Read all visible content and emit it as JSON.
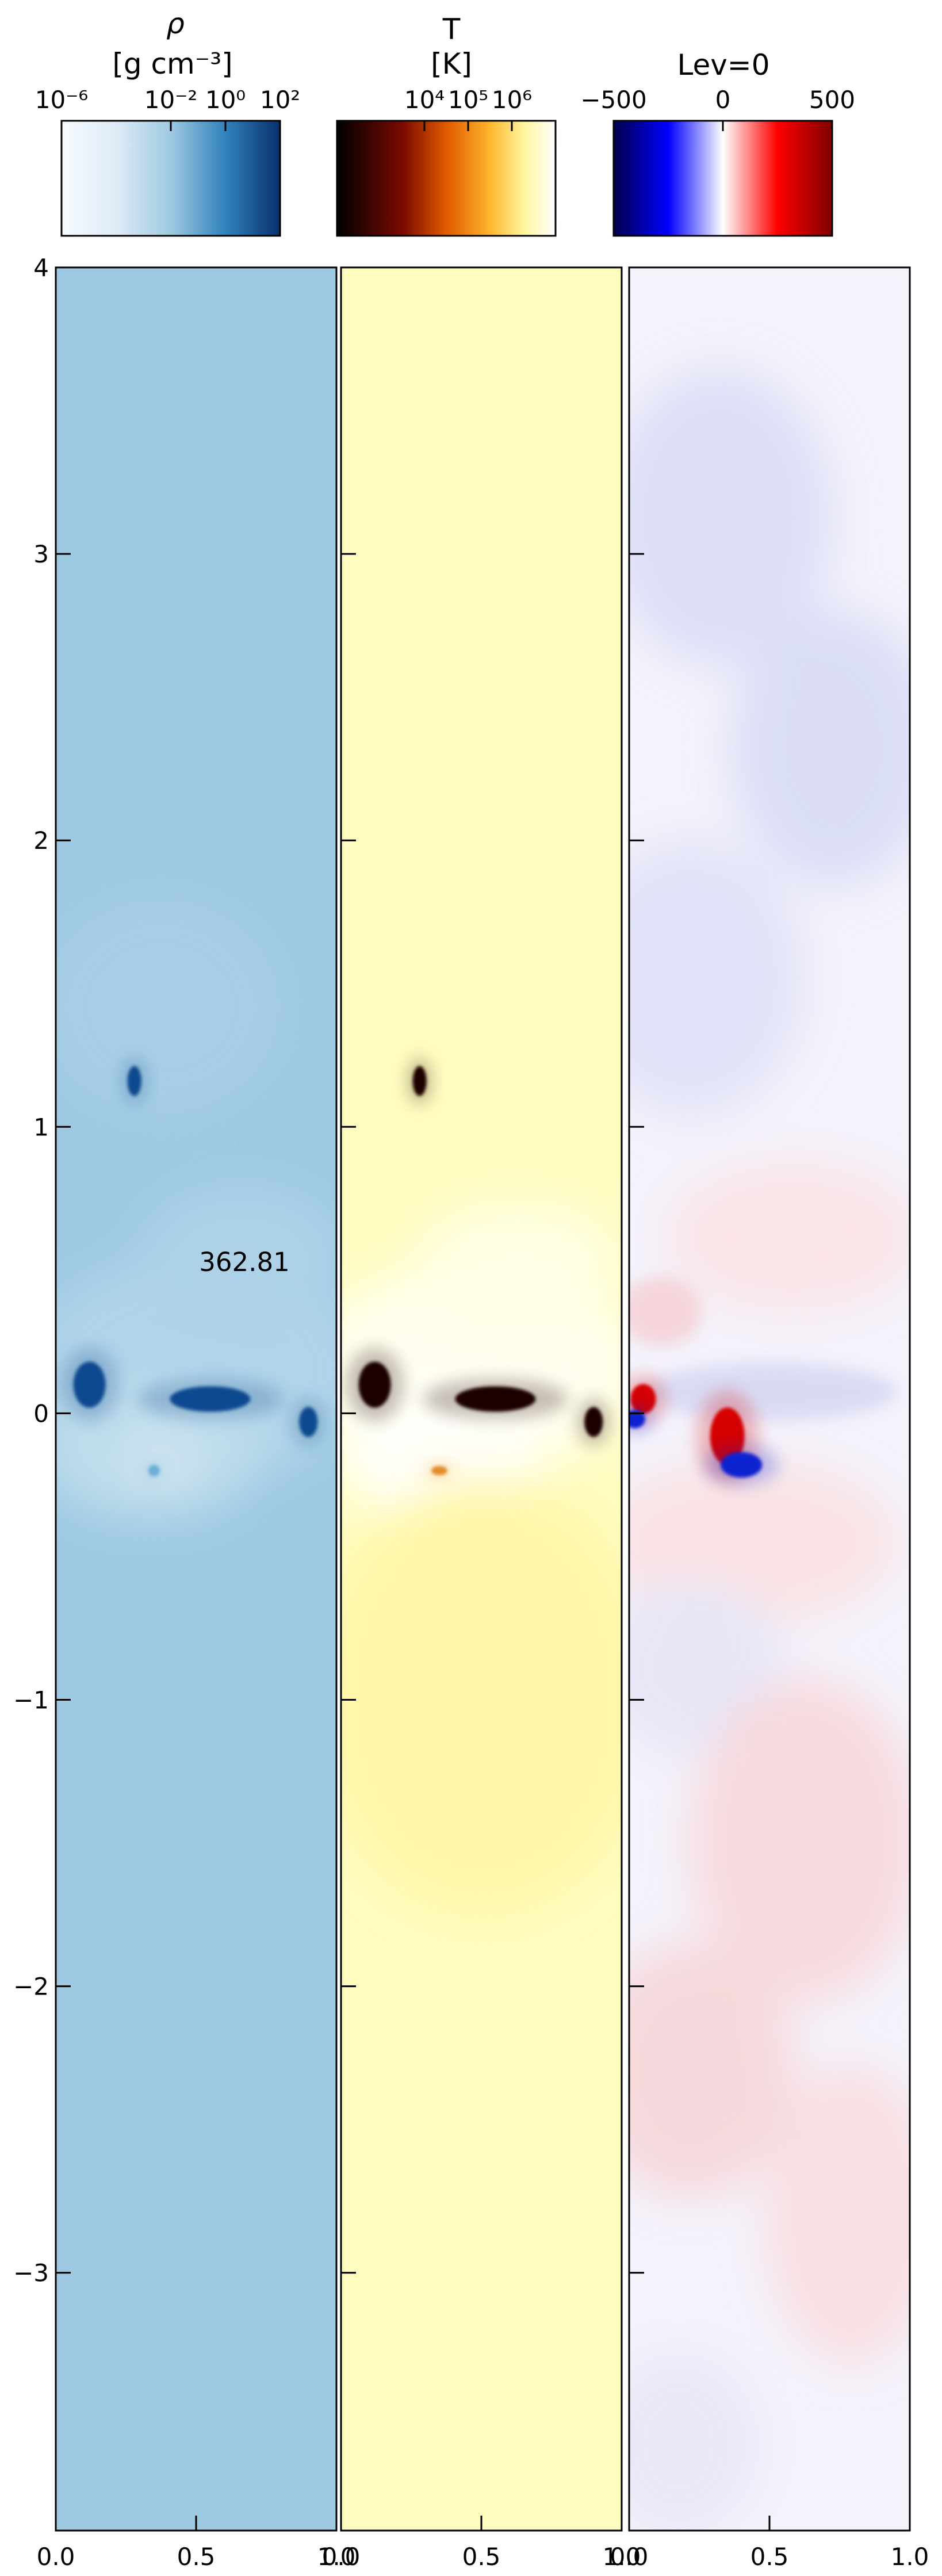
{
  "time_label": "362.81",
  "chart_data": [
    {
      "type": "heatmap",
      "panel": "density",
      "colorbar": {
        "title_line1": "ρ",
        "title_line2": "[g cm⁻³]",
        "colormap": "Blues",
        "scale": "log",
        "range": [
          1e-06,
          100
        ],
        "tick_labels": [
          "10⁻⁶",
          "10⁻²",
          "10⁰",
          "10²"
        ],
        "tick_values": [
          1e-06,
          0.01,
          1,
          100
        ]
      },
      "background_color": "#9dc9e2",
      "clumps": [
        {
          "x": 0.12,
          "y": 0.1,
          "value": "high"
        },
        {
          "x": 0.28,
          "y": 1.16,
          "value": "high"
        },
        {
          "x": 0.55,
          "y": 0.05,
          "value": "high"
        },
        {
          "x": 0.9,
          "y": -0.03,
          "value": "high"
        },
        {
          "x": 0.35,
          "y": -0.2,
          "value": "medium"
        }
      ],
      "xlim": [
        0,
        1
      ],
      "ylim": [
        -3.9,
        4
      ],
      "x_tick_labels": [
        "0.0",
        "0.5",
        "1.0"
      ],
      "x_tick_values": [
        0,
        0.5,
        1
      ],
      "y_tick_labels": [
        "4",
        "3",
        "2",
        "1",
        "0",
        "−1",
        "−2",
        "−3"
      ],
      "y_tick_values": [
        4,
        3,
        2,
        1,
        0,
        -1,
        -2,
        -3
      ]
    },
    {
      "type": "heatmap",
      "panel": "temperature",
      "colorbar": {
        "title_line1": "T",
        "title_line2": "[K]",
        "colormap": "afmhot",
        "scale": "log",
        "range": [
          100,
          10000000.0
        ],
        "tick_labels": [
          "10⁴",
          "10⁵",
          "10⁶"
        ],
        "tick_values": [
          10000,
          100000,
          1000000
        ]
      },
      "background_color": "#fffcc0",
      "clumps": [
        {
          "x": 0.12,
          "y": 0.1,
          "value": "low"
        },
        {
          "x": 0.28,
          "y": 1.16,
          "value": "low"
        },
        {
          "x": 0.55,
          "y": 0.05,
          "value": "low"
        },
        {
          "x": 0.9,
          "y": -0.03,
          "value": "low"
        },
        {
          "x": 0.35,
          "y": -0.2,
          "value": "medium"
        }
      ],
      "xlim": [
        0,
        1
      ],
      "ylim": [
        -3.9,
        4
      ],
      "x_tick_labels": [
        "0.0",
        "0.5",
        "1.0"
      ],
      "x_tick_values": [
        0,
        0.5,
        1
      ]
    },
    {
      "type": "heatmap",
      "panel": "velocity",
      "colorbar": {
        "title_line1": "Lev=0",
        "colormap": "seismic",
        "scale": "linear",
        "range": [
          -500,
          500
        ],
        "tick_labels": [
          "−500",
          "0",
          "500"
        ],
        "tick_values": [
          -500,
          0,
          500
        ]
      },
      "background_color": "#f4f2fb",
      "features": [
        {
          "x": 0.05,
          "y": 0.05,
          "sign": "positive"
        },
        {
          "x": 0.35,
          "y": -0.08,
          "sign": "positive"
        },
        {
          "x": 0.4,
          "y": -0.18,
          "sign": "negative"
        },
        {
          "x": 0.02,
          "y": -0.02,
          "sign": "negative"
        }
      ],
      "xlim": [
        0,
        1
      ],
      "ylim": [
        -3.9,
        4
      ],
      "x_tick_labels": [
        "0.0",
        "0.5",
        "1.0"
      ],
      "x_tick_values": [
        0,
        0.5,
        1
      ]
    }
  ]
}
